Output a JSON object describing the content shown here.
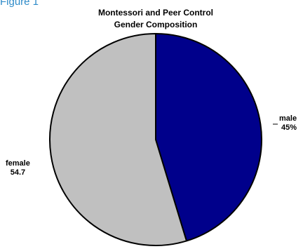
{
  "figure_label": "Figure 1",
  "chart_data": {
    "type": "pie",
    "title": [
      "Montessori and Peer Control",
      "Gender Composition"
    ],
    "slices": [
      {
        "label": "male",
        "value_text": "45%",
        "value": 45.3,
        "color": "#00008b"
      },
      {
        "label": "female",
        "value_text": "54.7",
        "value": 54.7,
        "color": "#c0c0c0"
      }
    ],
    "start_angle_deg": 0,
    "direction": "clockwise",
    "legend": "none",
    "outline_color": "#000000"
  }
}
